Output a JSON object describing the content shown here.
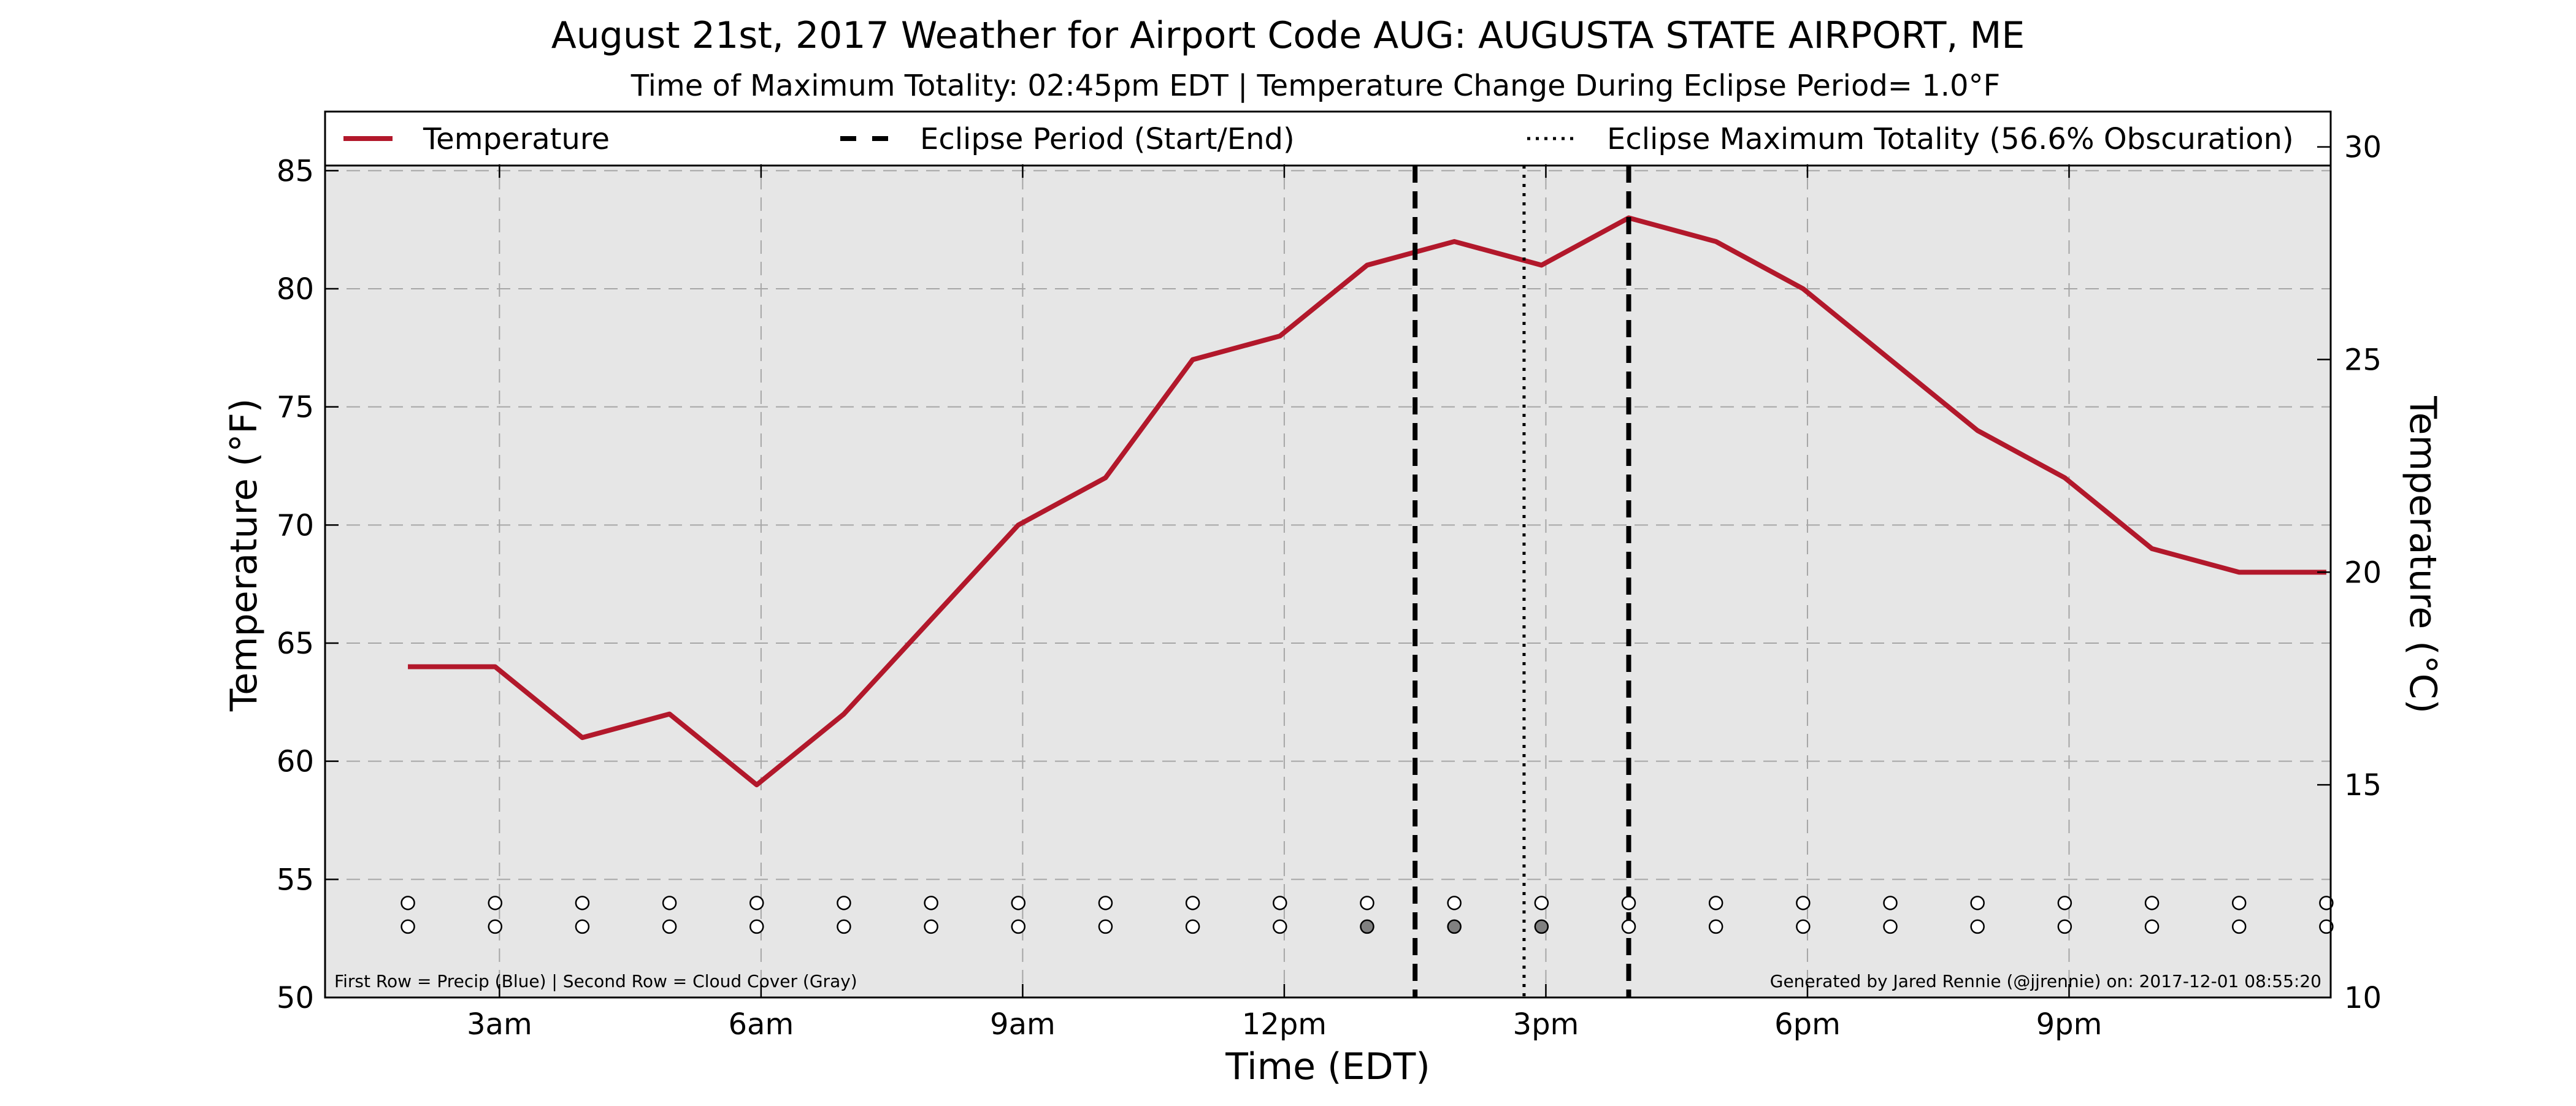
{
  "chart_data": {
    "type": "line",
    "title": "August 21st, 2017 Weather for Airport Code AUG: AUGUSTA STATE AIRPORT, ME",
    "subtitle": "Time of Maximum Totality: 02:45pm EDT | Temperature Change During Eclipse Period= 1.0°F",
    "xlabel": "Time (EDT)",
    "ylabel": "Temperature (°F)",
    "ylabel_right": "Temperature (°C)",
    "x_range_hours": [
      1.0,
      24.0
    ],
    "ylim": [
      50,
      87.5
    ],
    "ylim_right": [
      10,
      30.83
    ],
    "grid": true,
    "legend_placement": "top",
    "x_ticks": [
      {
        "hour": 3,
        "label": "3am"
      },
      {
        "hour": 6,
        "label": "6am"
      },
      {
        "hour": 9,
        "label": "9am"
      },
      {
        "hour": 12,
        "label": "12pm"
      },
      {
        "hour": 15,
        "label": "3pm"
      },
      {
        "hour": 18,
        "label": "6pm"
      },
      {
        "hour": 21,
        "label": "9pm"
      }
    ],
    "y_ticks_left": [
      "50",
      "55",
      "60",
      "65",
      "70",
      "75",
      "80",
      "85"
    ],
    "y_ticks_right": [
      "10",
      "15",
      "20",
      "25",
      "30"
    ],
    "series": [
      {
        "name": "Temperature",
        "color": "#b2182b",
        "x": [
          1.95,
          2.95,
          3.95,
          4.95,
          5.95,
          6.95,
          7.95,
          8.95,
          9.95,
          10.95,
          11.95,
          12.95,
          13.95,
          14.95,
          15.95,
          16.95,
          17.95,
          18.95,
          19.95,
          20.95,
          21.95,
          22.95,
          23.95
        ],
        "y": [
          64,
          64,
          61,
          62,
          59,
          62,
          66,
          70,
          72,
          77,
          78,
          81,
          82,
          81,
          83,
          82,
          80,
          77,
          74,
          72,
          69,
          68,
          68
        ]
      }
    ],
    "vertical_lines": [
      {
        "hour": 14.75,
        "style": "dotted",
        "legend": "Eclipse Maximum Totality (56.6% Obscuration)"
      },
      {
        "hour": 13.5,
        "style": "dashed",
        "legend": "Eclipse Period (Start/End)"
      },
      {
        "hour": 15.95,
        "style": "dashed",
        "legend": "Eclipse Period (Start/End)"
      }
    ],
    "legend": [
      {
        "label": "Temperature",
        "style": "solid",
        "color": "#b2182b"
      },
      {
        "label": "Eclipse Period (Start/End)",
        "style": "dashed",
        "color": "#000000"
      },
      {
        "label": "Eclipse Maximum Totality (56.6% Obscuration)",
        "style": "dotted",
        "color": "#000000"
      }
    ],
    "markers": {
      "hours": [
        1.95,
        2.95,
        3.95,
        4.95,
        5.95,
        6.95,
        7.95,
        8.95,
        9.95,
        10.95,
        11.95,
        12.95,
        13.95,
        14.95,
        15.95,
        16.95,
        17.95,
        18.95,
        19.95,
        20.95,
        21.95,
        22.95,
        23.95
      ],
      "precip_row_y": 54,
      "cloud_row_y": 53,
      "precip": [
        0,
        0,
        0,
        0,
        0,
        0,
        0,
        0,
        0,
        0,
        0,
        0,
        0,
        0,
        0,
        0,
        0,
        0,
        0,
        0,
        0,
        0,
        0
      ],
      "cloud": [
        0,
        0,
        0,
        0,
        0,
        0,
        0,
        0,
        0,
        0,
        0,
        1,
        1,
        1,
        0,
        0,
        0,
        0,
        0,
        0,
        0,
        0,
        0
      ],
      "empty_fill": "#ffffff",
      "precip_fill": "#3b6fd6",
      "cloud_fill": "#808080"
    },
    "footnote_left": "First Row = Precip (Blue) | Second Row = Cloud Cover (Gray)",
    "footnote_right": "Generated by Jared Rennie (@jjrennie) on: 2017-12-01 08:55:20",
    "colors": {
      "background": "#e6e6e6",
      "grid": "#a6a6a6",
      "line": "#b2182b"
    }
  }
}
